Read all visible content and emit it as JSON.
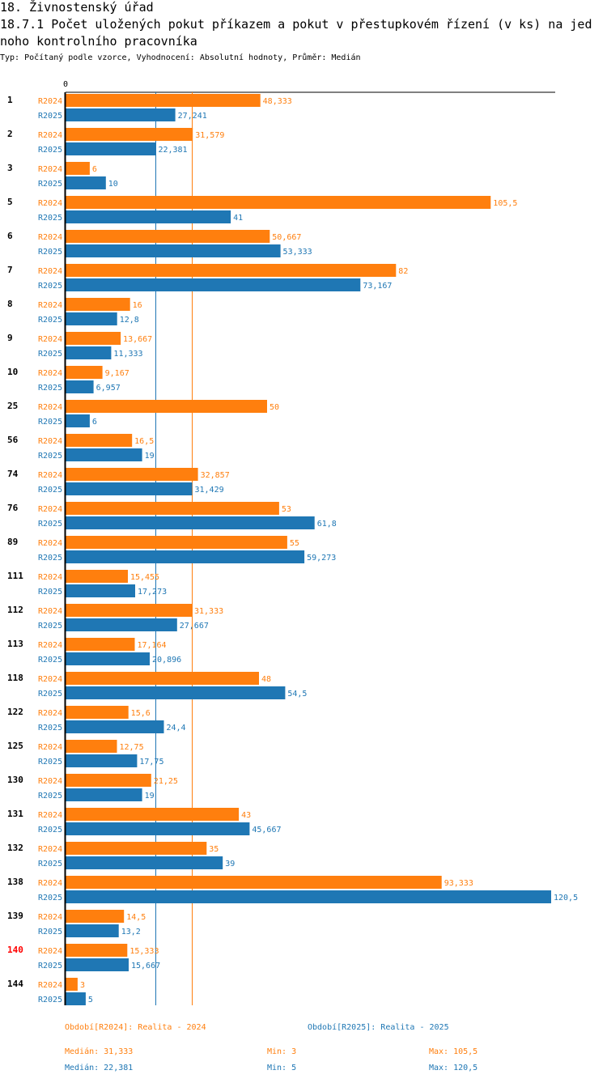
{
  "header": {
    "title": "18. Živnostenský úřad",
    "subtitle": "18.7.1 Počet uložených pokut příkazem a pokut v přestupkovém řízení (v ks) na jednoho kontrolního pracovníka",
    "type_line": "Typ: Počítaný podle vzorce, Vyhodnocení: Absolutní hodnoty, Průměr: Medián"
  },
  "colors": {
    "r2024": "#ff7f0e",
    "r2025": "#1f77b4",
    "highlight_label": "#ff0000",
    "axis": "#000000"
  },
  "chart_data": {
    "type": "bar",
    "orientation": "horizontal",
    "axis_zero_label": "0",
    "xlim": [
      0,
      120.5
    ],
    "categories": [
      "1",
      "2",
      "3",
      "5",
      "6",
      "7",
      "8",
      "9",
      "10",
      "25",
      "56",
      "74",
      "76",
      "89",
      "111",
      "112",
      "113",
      "118",
      "122",
      "125",
      "130",
      "131",
      "132",
      "138",
      "139",
      "140",
      "144"
    ],
    "highlighted_category": "140",
    "series": [
      {
        "name": "R2024",
        "values": [
          48.333,
          31.579,
          6,
          105.5,
          50.667,
          82,
          16,
          13.667,
          9.167,
          50,
          16.5,
          32.857,
          53,
          55,
          15.455,
          31.333,
          17.164,
          48,
          15.6,
          12.75,
          21.25,
          43,
          35,
          93.333,
          14.5,
          15.333,
          3
        ],
        "labels": [
          "48,333",
          "31,579",
          "6",
          "105,5",
          "50,667",
          "82",
          "16",
          "13,667",
          "9,167",
          "50",
          "16,5",
          "32,857",
          "53",
          "55",
          "15,455",
          "31,333",
          "17,164",
          "48",
          "15,6",
          "12,75",
          "21,25",
          "43",
          "35",
          "93,333",
          "14,5",
          "15,333",
          "3"
        ]
      },
      {
        "name": "R2025",
        "values": [
          27.241,
          22.381,
          10,
          41,
          53.333,
          73.167,
          12.8,
          11.333,
          6.957,
          6,
          19,
          31.429,
          61.8,
          59.273,
          17.273,
          27.667,
          20.896,
          54.5,
          24.4,
          17.75,
          19,
          45.667,
          39,
          120.5,
          13.2,
          15.667,
          5
        ],
        "labels": [
          "27,241",
          "22,381",
          "10",
          "41",
          "53,333",
          "73,167",
          "12,8",
          "11,333",
          "6,957",
          "6",
          "19",
          "31,429",
          "61,8",
          "59,273",
          "17,273",
          "27,667",
          "20,896",
          "54,5",
          "24,4",
          "17,75",
          "19",
          "45,667",
          "39",
          "120,5",
          "13,2",
          "15,667",
          "5"
        ]
      }
    ],
    "median_lines": {
      "R2024": 31.333,
      "R2025": 22.381
    }
  },
  "legend": {
    "r2024": "Období[R2024]: Realita - 2024",
    "r2025": "Období[R2025]: Realita - 2025"
  },
  "stats": {
    "r2024": {
      "median": "Medián: 31,333",
      "min": "Min: 3",
      "max": "Max: 105,5"
    },
    "r2025": {
      "median": "Medián: 22,381",
      "min": "Min: 5",
      "max": "Max: 120,5"
    }
  }
}
